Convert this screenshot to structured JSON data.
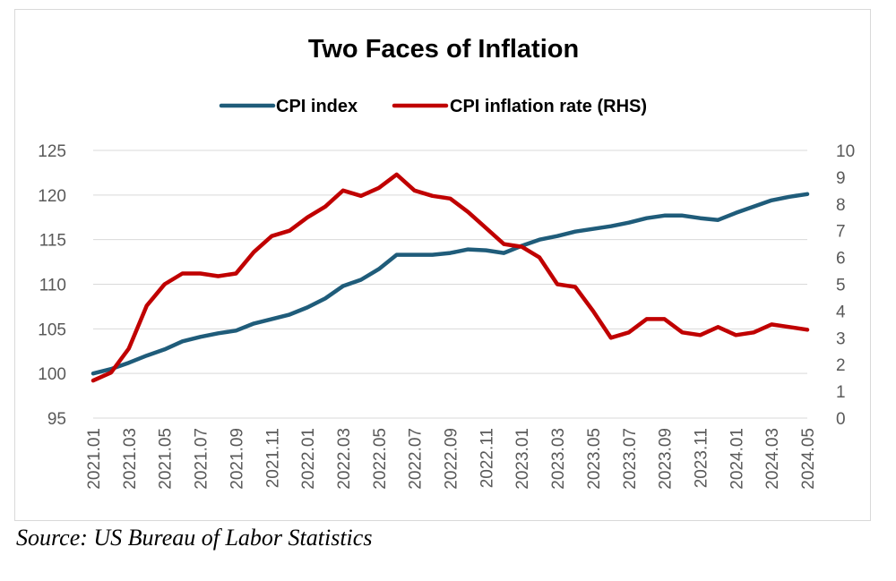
{
  "source_note": "Source: US Bureau of Labor Statistics",
  "chart_data": {
    "type": "line",
    "title": "Two Faces of Inflation",
    "legend_position": "top",
    "grid": "horizontal",
    "x": [
      "2021.01",
      "2021.02",
      "2021.03",
      "2021.04",
      "2021.05",
      "2021.06",
      "2021.07",
      "2021.08",
      "2021.09",
      "2021.10",
      "2021.11",
      "2021.12",
      "2022.01",
      "2022.02",
      "2022.03",
      "2022.04",
      "2022.05",
      "2022.06",
      "2022.07",
      "2022.08",
      "2022.09",
      "2022.10",
      "2022.11",
      "2022.12",
      "2023.01",
      "2023.02",
      "2023.03",
      "2023.04",
      "2023.05",
      "2023.06",
      "2023.07",
      "2023.08",
      "2023.09",
      "2023.10",
      "2023.11",
      "2023.12",
      "2024.01",
      "2024.02",
      "2024.03",
      "2024.04",
      "2024.05"
    ],
    "x_tick_labels": [
      "2021.01",
      "2021.03",
      "2021.05",
      "2021.07",
      "2021.09",
      "2021.11",
      "2022.01",
      "2022.03",
      "2022.05",
      "2022.07",
      "2022.09",
      "2022.11",
      "2023.01",
      "2023.03",
      "2023.05",
      "2023.07",
      "2023.09",
      "2023.11",
      "2024.01",
      "2024.03",
      "2024.05"
    ],
    "y_left": {
      "ylim": [
        95,
        125
      ],
      "ticks": [
        95,
        100,
        105,
        110,
        115,
        120,
        125
      ]
    },
    "y_right": {
      "ylim": [
        0,
        10
      ],
      "ticks": [
        0,
        1,
        2,
        3,
        4,
        5,
        6,
        7,
        8,
        9,
        10
      ]
    },
    "series": [
      {
        "name": "CPI index",
        "axis": "left",
        "color": "#1f5c7a",
        "values": [
          100.0,
          100.5,
          101.2,
          102.0,
          102.7,
          103.6,
          104.1,
          104.5,
          104.8,
          105.6,
          106.1,
          106.6,
          107.4,
          108.4,
          109.8,
          110.5,
          111.7,
          113.3,
          113.3,
          113.3,
          113.5,
          113.9,
          113.8,
          113.5,
          114.3,
          115.0,
          115.4,
          115.9,
          116.2,
          116.5,
          116.9,
          117.4,
          117.7,
          117.7,
          117.4,
          117.2,
          118.0,
          118.7,
          119.4,
          119.8,
          120.1
        ]
      },
      {
        "name": "CPI inflation rate (RHS)",
        "axis": "right",
        "color": "#c00000",
        "values": [
          1.4,
          1.7,
          2.6,
          4.2,
          5.0,
          5.4,
          5.4,
          5.3,
          5.4,
          6.2,
          6.8,
          7.0,
          7.5,
          7.9,
          8.5,
          8.3,
          8.6,
          9.1,
          8.5,
          8.3,
          8.2,
          7.7,
          7.1,
          6.5,
          6.4,
          6.0,
          5.0,
          4.9,
          4.0,
          3.0,
          3.2,
          3.7,
          3.7,
          3.2,
          3.1,
          3.4,
          3.1,
          3.2,
          3.5,
          3.4,
          3.3
        ]
      }
    ]
  }
}
